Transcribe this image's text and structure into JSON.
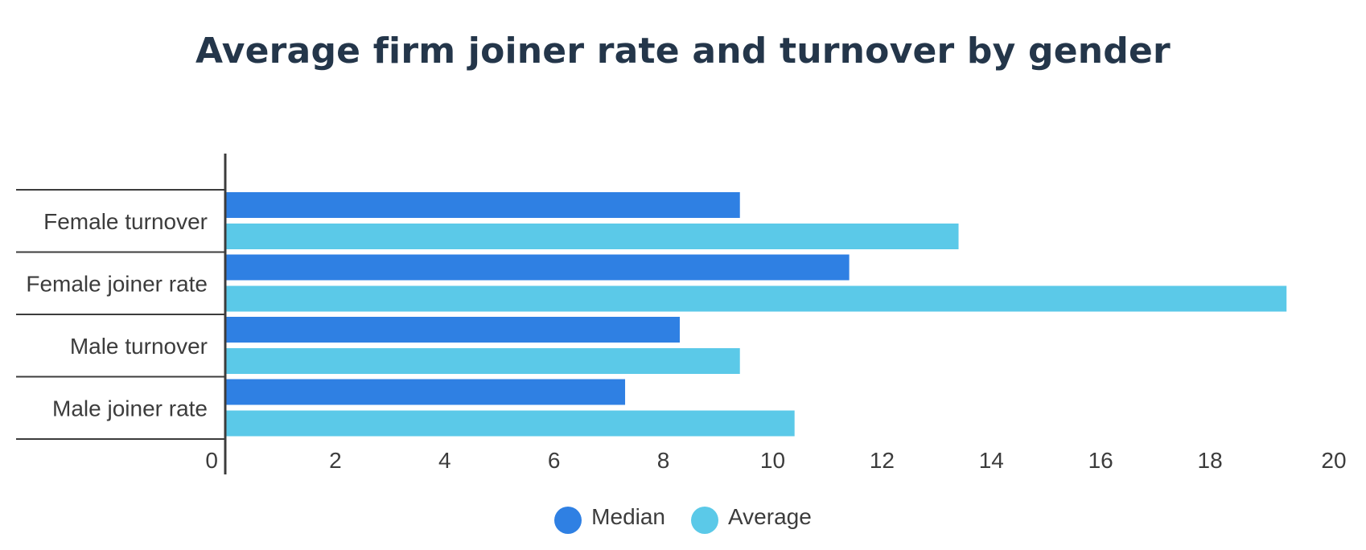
{
  "chart_data": {
    "type": "bar",
    "orientation": "horizontal",
    "title": "Average firm joiner rate and turnover by gender",
    "categories": [
      "Female turnover",
      "Female joiner rate",
      "Male turnover",
      "Male joiner rate"
    ],
    "series": [
      {
        "name": "Median",
        "values": [
          9.4,
          11.4,
          8.3,
          7.3
        ],
        "color": "#2f80e3"
      },
      {
        "name": "Average",
        "values": [
          13.4,
          19.4,
          9.4,
          10.4
        ],
        "color": "#5bc9e8"
      }
    ],
    "xlim": [
      0,
      20
    ],
    "x_ticks": [
      "0",
      "2",
      "4",
      "6",
      "8",
      "10",
      "12",
      "14",
      "16",
      "18",
      "20"
    ],
    "xlabel": "",
    "ylabel": "",
    "grid": false,
    "legend_position": "bottom-center"
  }
}
